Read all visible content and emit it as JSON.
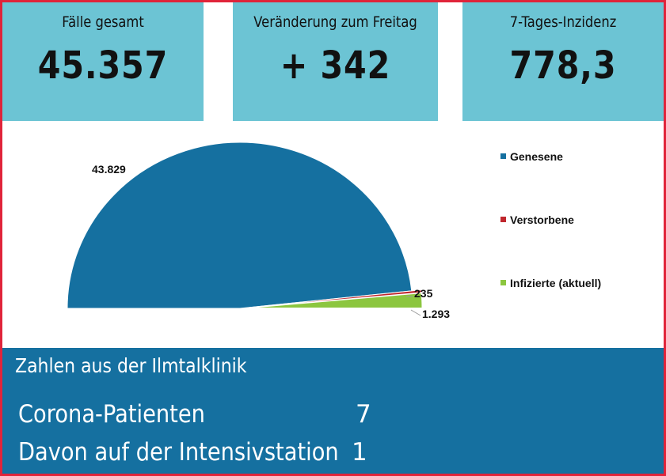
{
  "stats": [
    {
      "label": "Fälle gesamt",
      "value": "45.357"
    },
    {
      "label": "Veränderung zum Freitag",
      "value": "+ 342"
    },
    {
      "label": "7-Tages-Inzidenz",
      "value": "778,3"
    }
  ],
  "chart_data": {
    "type": "pie",
    "subtype": "half-pie",
    "categories": [
      "Genesene",
      "Verstorbene",
      "Infizierte (aktuell)"
    ],
    "values": [
      43829,
      235,
      1293
    ],
    "data_labels": [
      "43.829",
      "235",
      "1.293"
    ],
    "legend_position": "right",
    "colors": [
      "#1570a0",
      "#c0272d",
      "#8cc63f"
    ]
  },
  "clinic": {
    "title": "Zahlen aus der Ilmtalklinik",
    "rows": [
      {
        "label": "Corona-Patienten",
        "value": "7"
      },
      {
        "label": "Davon auf der Intensivstation",
        "value": "1"
      }
    ]
  },
  "colors": {
    "border": "#e0243a",
    "stat_bg": "#6cc4d4",
    "clinic_bg": "#1570a0"
  }
}
